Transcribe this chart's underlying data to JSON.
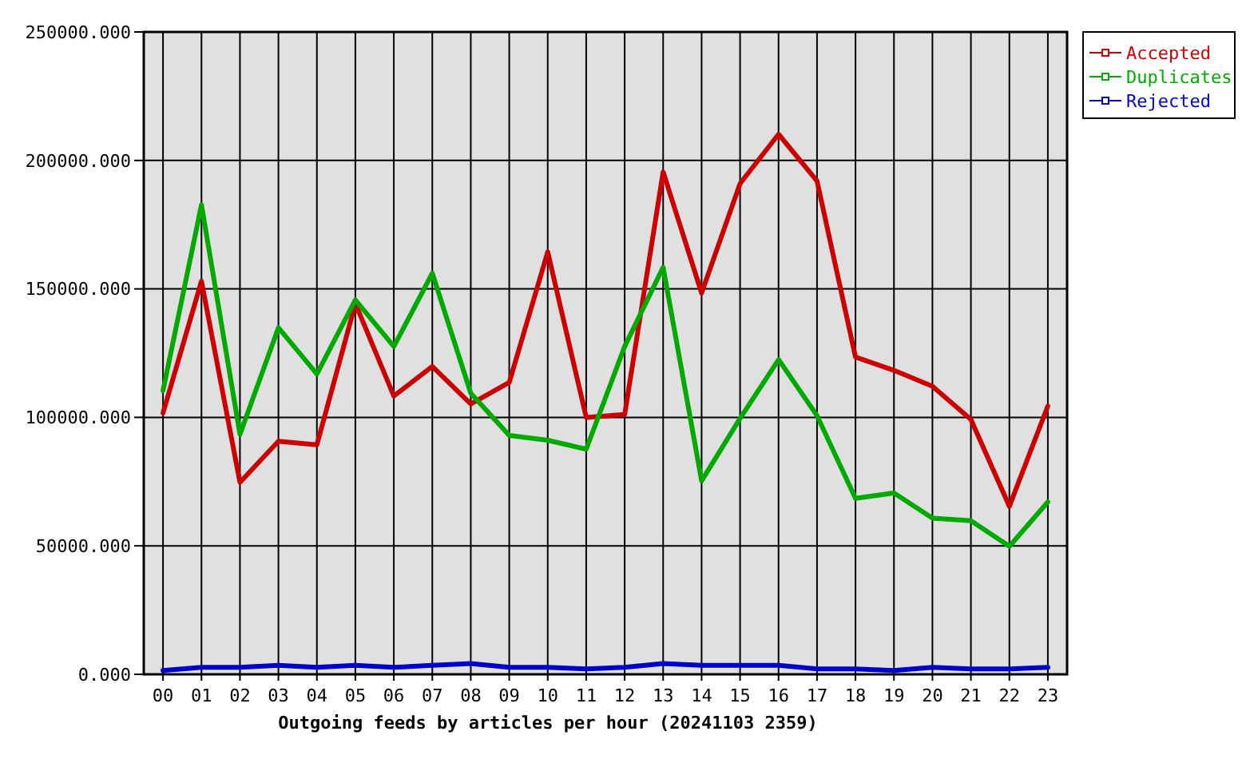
{
  "chart_data": {
    "type": "line",
    "title": "Outgoing feeds by articles per hour (20241103 2359)",
    "categories": [
      "00",
      "01",
      "02",
      "03",
      "04",
      "05",
      "06",
      "07",
      "08",
      "09",
      "10",
      "11",
      "12",
      "13",
      "14",
      "15",
      "16",
      "17",
      "18",
      "19",
      "20",
      "21",
      "22",
      "23"
    ],
    "series": [
      {
        "name": "Accepted",
        "color": "#cc0000",
        "values": [
          101700,
          153000,
          74700,
          90700,
          89300,
          144300,
          108300,
          119800,
          105200,
          113600,
          164400,
          100000,
          101100,
          195500,
          148400,
          191000,
          210200,
          192000,
          123500,
          118300,
          112100,
          99200,
          65400,
          104400
        ]
      },
      {
        "name": "Duplicates",
        "color": "#00aa00",
        "values": [
          110400,
          182700,
          93400,
          134900,
          116900,
          145700,
          127600,
          156100,
          109400,
          93000,
          91100,
          87600,
          127600,
          158400,
          75300,
          99600,
          122500,
          100700,
          68500,
          70600,
          60800,
          59800,
          49800,
          67100
        ]
      },
      {
        "name": "Rejected",
        "color": "#0000cc",
        "values": [
          1500,
          2700,
          2700,
          3500,
          2700,
          3500,
          2700,
          3500,
          4200,
          2700,
          2700,
          2100,
          2700,
          4200,
          3500,
          3500,
          3500,
          2100,
          2100,
          1500,
          2700,
          2100,
          2100,
          2700
        ]
      }
    ],
    "ylim": [
      0,
      250000
    ],
    "yticks": [
      {
        "value": 0,
        "label": "0.000"
      },
      {
        "value": 50000,
        "label": "50000.000"
      },
      {
        "value": 100000,
        "label": "100000.000"
      },
      {
        "value": 150000,
        "label": "150000.000"
      },
      {
        "value": 200000,
        "label": "200000.000"
      },
      {
        "value": 250000,
        "label": "250000.000"
      }
    ],
    "grid": true,
    "legend": "top right",
    "line_style": "solid"
  }
}
